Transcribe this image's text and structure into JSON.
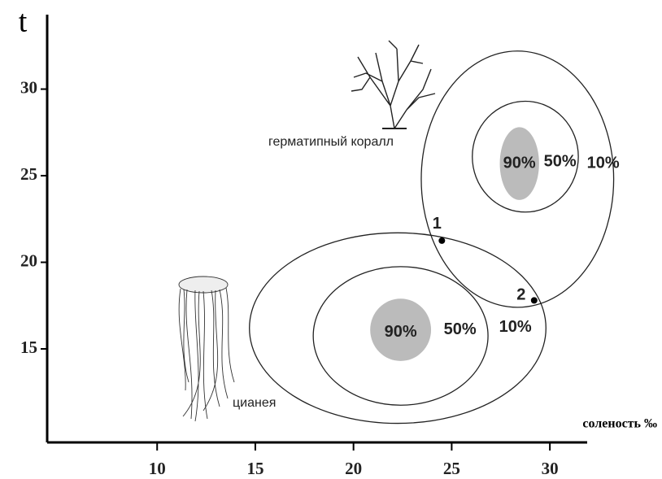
{
  "chart_data": {
    "type": "niche",
    "y_label": "t",
    "x_label": "соленость ‰",
    "xlim": [
      4.4,
      31.9
    ],
    "ylim": [
      9.6,
      34.3
    ],
    "xticks": [
      10,
      15,
      20,
      25,
      30
    ],
    "yticks": [
      15,
      20,
      25,
      30
    ],
    "niches": [
      {
        "name": "герматипный коралл",
        "ellipses": [
          {
            "label": "10%",
            "cx": 28.35,
            "cy": 24.8,
            "rx": 4.9,
            "ry": 7.4
          },
          {
            "label": "50%",
            "cx": 28.75,
            "cy": 26.1,
            "rx": 2.7,
            "ry": 3.2
          },
          {
            "label": "90%",
            "cx": 28.45,
            "cy": 25.7,
            "rx": 1.0,
            "ry": 2.1
          }
        ]
      },
      {
        "name": "цианея",
        "ellipses": [
          {
            "label": "10%",
            "cx": 22.25,
            "cy": 16.2,
            "rx": 7.55,
            "ry": 5.5
          },
          {
            "label": "50%",
            "cx": 22.4,
            "cy": 15.75,
            "rx": 4.45,
            "ry": 4.0
          },
          {
            "label": "90%",
            "cx": 22.4,
            "cy": 16.1,
            "rx": 1.55,
            "ry": 1.8
          }
        ]
      }
    ],
    "points": [
      {
        "label": "1",
        "x": 24.5,
        "y": 21.25
      },
      {
        "label": "2",
        "x": 29.2,
        "y": 17.8
      }
    ]
  }
}
